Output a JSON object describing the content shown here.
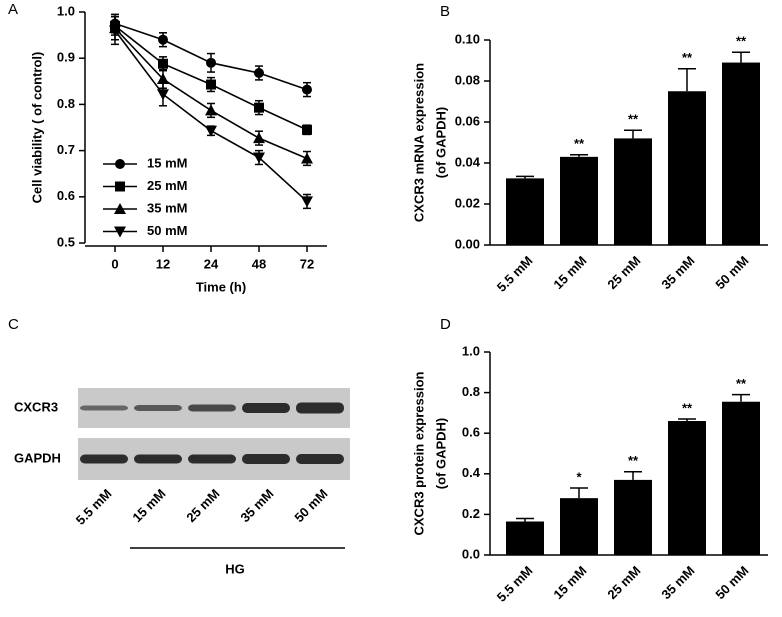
{
  "chart_data": [
    {
      "type": "line",
      "panel": "A",
      "xlabel": "Time (h)",
      "ylabel": "Cell viability ( of control)",
      "categories": [
        "0",
        "12",
        "24",
        "48",
        "72"
      ],
      "ylim": [
        0.5,
        1.0
      ],
      "yticks": [
        0.5,
        0.6,
        0.7,
        0.8,
        0.9,
        {
          "value": 1.0,
          "label": "1.0"
        }
      ],
      "series": [
        {
          "name": "15 mM",
          "color": "#000000",
          "marker": "circle",
          "values": [
            0.975,
            0.94,
            0.89,
            0.868,
            0.832
          ],
          "errors": [
            0.02,
            0.015,
            0.02,
            0.015,
            0.015
          ]
        },
        {
          "name": "25 mM",
          "color": "#000000",
          "marker": "square",
          "values": [
            0.97,
            0.888,
            0.843,
            0.793,
            0.745
          ],
          "errors": [
            0.02,
            0.015,
            0.015,
            0.015,
            0.01
          ]
        },
        {
          "name": "35 mM",
          "color": "#000000",
          "marker": "triangle",
          "values": [
            0.965,
            0.855,
            0.787,
            0.727,
            0.683
          ],
          "errors": [
            0.025,
            0.02,
            0.015,
            0.015,
            0.015
          ]
        },
        {
          "name": "50 mM",
          "color": "#000000",
          "marker": "triangle-down",
          "values": [
            0.96,
            0.822,
            0.743,
            0.685,
            0.59
          ],
          "errors": [
            0.03,
            0.025,
            0.01,
            0.015,
            0.015
          ]
        }
      ]
    },
    {
      "type": "bar",
      "panel": "B",
      "ylabel": [
        "CXCR3 mRNA expression",
        "(of GAPDH)"
      ],
      "categories": [
        "5.5 mM",
        "15 mM",
        "25 mM",
        "35 mM",
        "50 mM"
      ],
      "values": [
        0.0325,
        0.043,
        0.052,
        0.075,
        0.089
      ],
      "errors": [
        0.001,
        0.001,
        0.004,
        0.011,
        0.005
      ],
      "annotations": [
        null,
        "**",
        "**",
        "**",
        "**"
      ],
      "color": "#000000",
      "ylim": [
        0,
        0.1
      ],
      "yticks": [
        {
          "value": 0,
          "label": "0.00"
        },
        {
          "value": 0.02,
          "label": "0.02"
        },
        {
          "value": 0.04,
          "label": "0.04"
        },
        {
          "value": 0.06,
          "label": "0.06"
        },
        {
          "value": 0.08,
          "label": "0.08"
        },
        {
          "value": 0.1,
          "label": "0.10"
        }
      ]
    },
    {
      "type": "blot",
      "panel": "C",
      "rows": [
        "CXCR3",
        "GAPDH"
      ],
      "categories": [
        "5.5 mM",
        "15 mM",
        "25 mM",
        "35 mM",
        "50 mM"
      ],
      "group_label": "HG"
    },
    {
      "type": "bar",
      "panel": "D",
      "ylabel": [
        "CXCR3 protein expression",
        "(of GAPDH)"
      ],
      "categories": [
        "5.5 mM",
        "15 mM",
        "25 mM",
        "35 mM",
        "50 mM"
      ],
      "values": [
        0.165,
        0.28,
        0.37,
        0.66,
        0.755
      ],
      "errors": [
        0.015,
        0.05,
        0.04,
        0.01,
        0.035
      ],
      "annotations": [
        null,
        "*",
        "**",
        "**",
        "**"
      ],
      "color": "#000000",
      "ylim": [
        0,
        1.0
      ],
      "yticks": [
        {
          "value": 0,
          "label": "0.0"
        },
        0.2,
        0.4,
        0.6,
        0.8,
        {
          "value": 1.0,
          "label": "1.0"
        }
      ]
    }
  ]
}
